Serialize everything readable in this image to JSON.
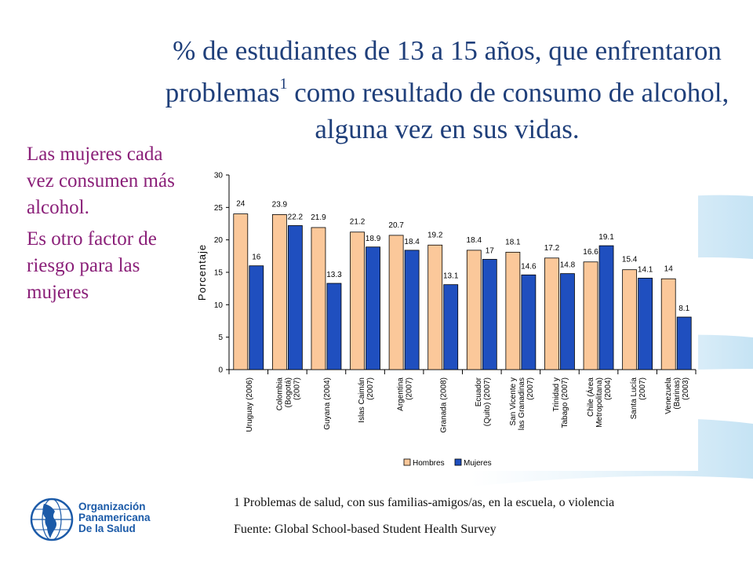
{
  "title": {
    "part1": "% de estudiantes de 13 a 15 años, que enfrentaron problemas",
    "superscript": "1",
    "part2": " como resultado de consumo de alcohol, alguna vez en sus vidas."
  },
  "side_text": {
    "paragraph1": "Las mujeres cada vez consumen más alcohol.",
    "paragraph2": "Es otro factor de riesgo para las mujeres"
  },
  "footnote": "1 Problemas de salud, con sus familias-amigos/as, en la escuela, o violencia",
  "source": "Fuente: Global School-based Student Health Survey",
  "logo": {
    "line1": "Organización",
    "line2": "Panamericana",
    "line3": "De la Salud"
  },
  "colors": {
    "hombres": "#fbc89a",
    "mujeres": "#1f4fbf",
    "title": "#1f3f7a",
    "side_text": "#8a1f78",
    "logo": "#1b5aa8"
  },
  "chart_data": {
    "type": "bar",
    "ylabel": "Porcentaje",
    "ylim": [
      0,
      30
    ],
    "yticks": [
      0,
      5,
      10,
      15,
      20,
      25,
      30
    ],
    "categories": [
      [
        "Uruguay (2006)"
      ],
      [
        "Colombia",
        "(Bogotá)",
        "(2007)"
      ],
      [
        "Guyana (2004)"
      ],
      [
        "Islas Caimán",
        "(2007)"
      ],
      [
        "Argentina",
        "(2007)"
      ],
      [
        "Granada (2008)"
      ],
      [
        "Ecuador",
        "(Quito) (2007)"
      ],
      [
        "San Vicente y",
        "las Granadinas",
        "(2007)"
      ],
      [
        "Trinidad y",
        "Tabago (2007)"
      ],
      [
        "Chile (Área",
        "Metropolitana)",
        "(2004)"
      ],
      [
        "Santa Lucía",
        "(2007)"
      ],
      [
        "Venezuela",
        "(Barinas)",
        "(2003)"
      ]
    ],
    "series": [
      {
        "name": "Hombres",
        "values": [
          24,
          23.9,
          21.9,
          21.2,
          20.7,
          19.2,
          18.4,
          18.1,
          17.2,
          16.6,
          15.4,
          14
        ]
      },
      {
        "name": "Mujeres",
        "values": [
          16,
          22.2,
          13.3,
          18.9,
          18.4,
          13.1,
          17,
          14.6,
          14.8,
          19.1,
          14.1,
          8.1
        ]
      }
    ],
    "legend_position": "bottom",
    "grid": false
  }
}
